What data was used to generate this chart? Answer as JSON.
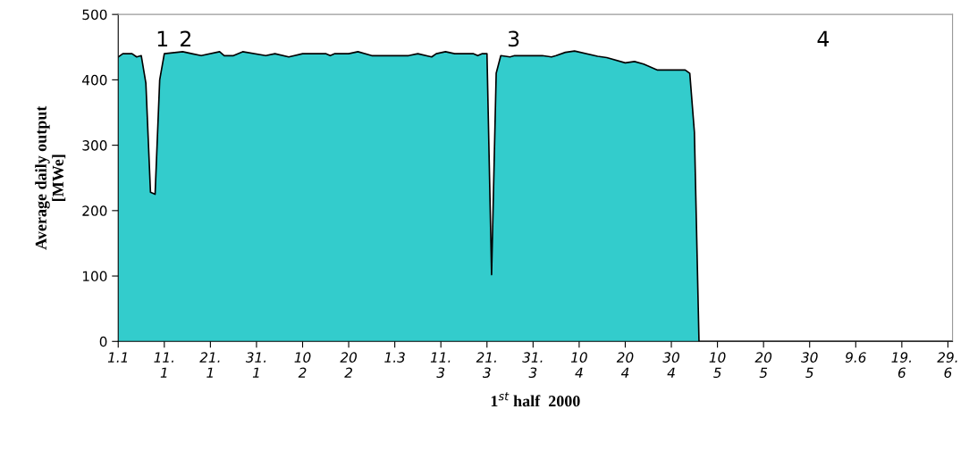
{
  "chart_data": {
    "type": "area",
    "xlabel": "1$^{st}$ half  2000",
    "ylabel": "Average daily output\n[MWe]",
    "x": [
      "2000-01-01",
      "2000-01-02",
      "2000-01-04",
      "2000-01-05",
      "2000-01-06",
      "2000-01-07",
      "2000-01-08",
      "2000-01-09",
      "2000-01-10",
      "2000-01-11",
      "2000-01-15",
      "2000-01-17",
      "2000-01-19",
      "2000-01-23",
      "2000-01-24",
      "2000-01-26",
      "2000-01-28",
      "2000-02-02",
      "2000-02-04",
      "2000-02-07",
      "2000-02-10",
      "2000-02-15",
      "2000-02-16",
      "2000-02-17",
      "2000-02-20",
      "2000-02-22",
      "2000-02-25",
      "2000-02-28",
      "2000-03-01",
      "2000-03-04",
      "2000-03-06",
      "2000-03-09",
      "2000-03-10",
      "2000-03-12",
      "2000-03-14",
      "2000-03-18",
      "2000-03-19",
      "2000-03-20",
      "2000-03-21",
      "2000-03-22",
      "2000-03-23",
      "2000-03-24",
      "2000-03-26",
      "2000-03-27",
      "2000-04-02",
      "2000-04-04",
      "2000-04-05",
      "2000-04-07",
      "2000-04-09",
      "2000-04-14",
      "2000-04-16",
      "2000-04-20",
      "2000-04-22",
      "2000-04-24",
      "2000-04-27",
      "2000-05-03",
      "2000-05-04",
      "2000-05-05",
      "2000-05-06",
      "2000-06-30"
    ],
    "series": [
      {
        "color": "#33cccc",
        "values": [
          435,
          440,
          440,
          435,
          437,
          395,
          228,
          225,
          400,
          440,
          443,
          440,
          437,
          443,
          437,
          437,
          443,
          437,
          440,
          435,
          440,
          440,
          437,
          440,
          440,
          443,
          437,
          437,
          437,
          437,
          440,
          435,
          440,
          443,
          440,
          440,
          437,
          440,
          440,
          102,
          410,
          437,
          435,
          437,
          437,
          435,
          437,
          442,
          444,
          436,
          434,
          426,
          428,
          424,
          415,
          415,
          410,
          320,
          0,
          0
        ]
      }
    ],
    "xlim": [
      "2000-01-01",
      "2000-06-30"
    ],
    "xticks": [
      {
        "value": "2000-01-01",
        "label": "1.1"
      },
      {
        "value": "2000-01-11",
        "label": "11.\n1"
      },
      {
        "value": "2000-01-21",
        "label": "21.\n1"
      },
      {
        "value": "2000-01-31",
        "label": "31.\n1"
      },
      {
        "value": "2000-02-10",
        "label": "10\n2"
      },
      {
        "value": "2000-02-20",
        "label": "20\n2"
      },
      {
        "value": "2000-03-01",
        "label": "1.3"
      },
      {
        "value": "2000-03-11",
        "label": "11.\n3"
      },
      {
        "value": "2000-03-21",
        "label": "21.\n3"
      },
      {
        "value": "2000-03-31",
        "label": "31.\n3"
      },
      {
        "value": "2000-04-10",
        "label": "10\n4"
      },
      {
        "value": "2000-04-20",
        "label": "20\n4"
      },
      {
        "value": "2000-04-30",
        "label": "30\n4"
      },
      {
        "value": "2000-05-10",
        "label": "10\n5"
      },
      {
        "value": "2000-05-20",
        "label": "20\n5"
      },
      {
        "value": "2000-05-30",
        "label": "30\n5"
      },
      {
        "value": "2000-06-09",
        "label": "9.6"
      },
      {
        "value": "2000-06-19",
        "label": "19.\n6"
      },
      {
        "value": "2000-06-29",
        "label": "29.\n6"
      }
    ],
    "ylim": [
      0,
      500
    ],
    "yticks": [
      0,
      100,
      200,
      300,
      400,
      500
    ],
    "annotations": [
      "1",
      "2",
      "3",
      "4"
    ],
    "grid": false,
    "legend": false
  }
}
